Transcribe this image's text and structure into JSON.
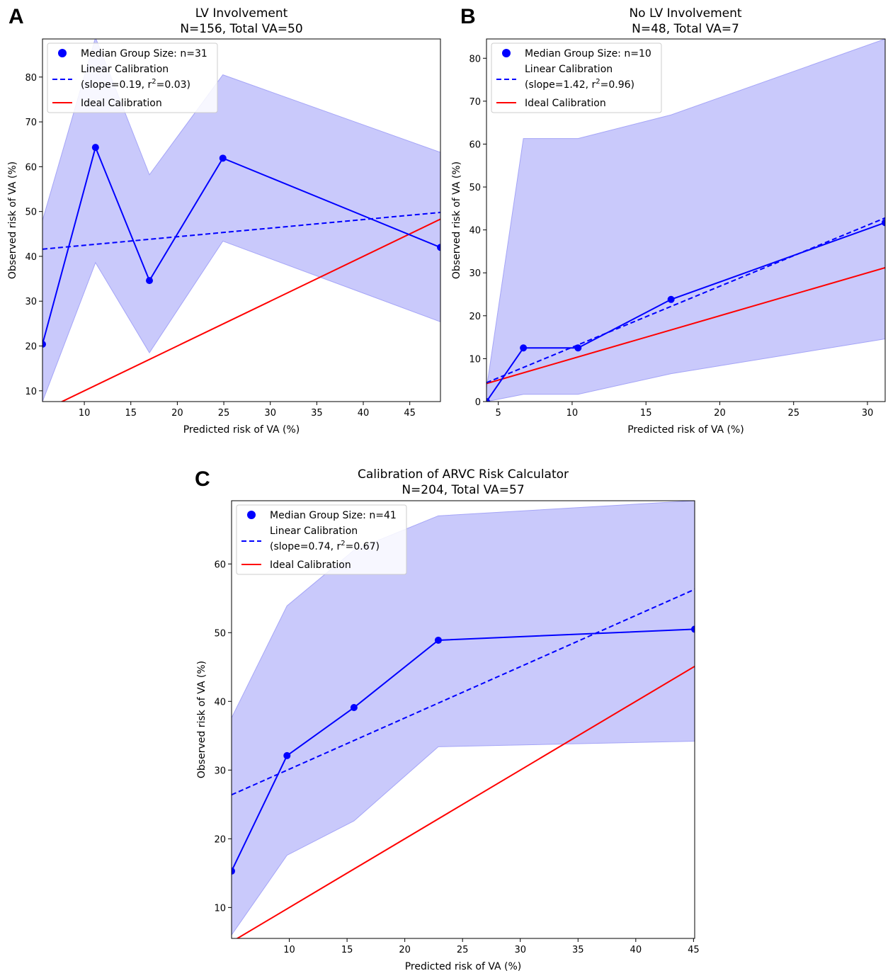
{
  "colors": {
    "band": "#c9c9fb",
    "band_edge": "#a5a5f7",
    "observed": "#0000ff",
    "linear": "#0000ff",
    "ideal": "#ff0000"
  },
  "chart_data": [
    {
      "panel_label": "A",
      "type": "line",
      "title": "LV Involvement",
      "subtitle": "N=156, Total VA=50",
      "xlabel": "Predicted risk of VA (%)",
      "ylabel": "Observed risk of VA (%)",
      "xlim": [
        5.5,
        48.3
      ],
      "ylim": [
        7.6,
        88.5
      ],
      "xticks": [
        10,
        15,
        20,
        25,
        30,
        35,
        40,
        45
      ],
      "yticks": [
        10,
        20,
        30,
        40,
        50,
        60,
        70,
        80
      ],
      "grid": false,
      "legend_position": "upper left",
      "legend": {
        "median": "Median Group Size: n=31",
        "linear_line1": "Linear Calibration",
        "linear_line2_a": "(slope=0.19, r",
        "linear_sup": "2",
        "linear_line2_b": "=0.03)",
        "ideal": "Ideal Calibration"
      },
      "series": [
        {
          "kind": "observed",
          "x": [
            5.5,
            11.2,
            17.0,
            24.9,
            48.3
          ],
          "y": [
            20.4,
            64.3,
            34.6,
            61.9,
            42.0
          ]
        },
        {
          "kind": "ci_band",
          "x": [
            5.5,
            11.2,
            17.0,
            24.9,
            48.3
          ],
          "upper": [
            48.0,
            88.8,
            58.2,
            80.5,
            63.2
          ],
          "lower": [
            7.6,
            38.6,
            18.5,
            43.4,
            25.4
          ]
        },
        {
          "kind": "linear",
          "x": [
            5.5,
            48.3
          ],
          "y": [
            41.6,
            49.8
          ]
        },
        {
          "kind": "ideal",
          "x": [
            5.5,
            48.3
          ],
          "y": [
            5.5,
            48.3
          ]
        }
      ]
    },
    {
      "panel_label": "B",
      "type": "line",
      "title": "No LV Involvement",
      "subtitle": "N=48, Total VA=7",
      "xlabel": "Predicted risk of VA (%)",
      "ylabel": "Observed risk of VA (%)",
      "xlim": [
        4.2,
        31.2
      ],
      "ylim": [
        0,
        84.5
      ],
      "xticks": [
        5,
        10,
        15,
        20,
        25,
        30
      ],
      "yticks": [
        0,
        10,
        20,
        30,
        40,
        50,
        60,
        70,
        80
      ],
      "grid": false,
      "legend_position": "upper left",
      "legend": {
        "median": "Median Group Size: n=10",
        "linear_line1": "Linear Calibration",
        "linear_line2_a": "(slope=1.42, r",
        "linear_sup": "2",
        "linear_line2_b": "=0.96)",
        "ideal": "Ideal Calibration"
      },
      "series": [
        {
          "kind": "observed",
          "x": [
            4.2,
            6.7,
            10.4,
            16.7,
            31.2
          ],
          "y": [
            0.0,
            12.5,
            12.5,
            23.8,
            41.7
          ]
        },
        {
          "kind": "ci_band",
          "x": [
            4.2,
            6.7,
            10.4,
            16.7,
            31.2
          ],
          "upper": [
            3.0,
            61.3,
            61.3,
            66.8,
            84.5
          ],
          "lower": [
            0.0,
            1.7,
            1.7,
            6.5,
            14.6
          ]
        },
        {
          "kind": "linear",
          "x": [
            4.2,
            31.2
          ],
          "y": [
            4.4,
            42.8
          ]
        },
        {
          "kind": "ideal",
          "x": [
            4.2,
            31.2
          ],
          "y": [
            4.2,
            31.2
          ]
        }
      ]
    },
    {
      "panel_label": "C",
      "type": "line",
      "title": "Calibration of ARVC Risk Calculator",
      "subtitle": "N=204, Total VA=57",
      "xlabel": "Predicted risk of VA (%)",
      "ylabel": "Observed risk of VA (%)",
      "xlim": [
        5.0,
        45.1
      ],
      "ylim": [
        5.5,
        69.2
      ],
      "xticks": [
        10,
        15,
        20,
        25,
        30,
        35,
        40,
        45
      ],
      "yticks": [
        10,
        20,
        30,
        40,
        50,
        60
      ],
      "grid": false,
      "legend_position": "upper left",
      "legend": {
        "median": "Median Group Size: n=41",
        "linear_line1": "Linear Calibration",
        "linear_line2_a": "(slope=0.74, r",
        "linear_sup": "2",
        "linear_line2_b": "=0.67)",
        "ideal": "Ideal Calibration"
      },
      "series": [
        {
          "kind": "observed",
          "x": [
            5.0,
            9.8,
            15.6,
            22.9,
            45.1
          ],
          "y": [
            15.3,
            32.1,
            39.1,
            48.9,
            50.5
          ]
        },
        {
          "kind": "ci_band",
          "x": [
            5.0,
            9.8,
            15.6,
            22.9,
            45.1
          ],
          "upper": [
            37.6,
            53.9,
            62.0,
            67.0,
            69.2
          ],
          "lower": [
            6.0,
            17.6,
            22.6,
            33.4,
            34.2
          ]
        },
        {
          "kind": "linear",
          "x": [
            5.0,
            45.1
          ],
          "y": [
            26.4,
            56.3
          ]
        },
        {
          "kind": "ideal",
          "x": [
            5.0,
            45.1
          ],
          "y": [
            5.0,
            45.1
          ]
        }
      ]
    }
  ]
}
